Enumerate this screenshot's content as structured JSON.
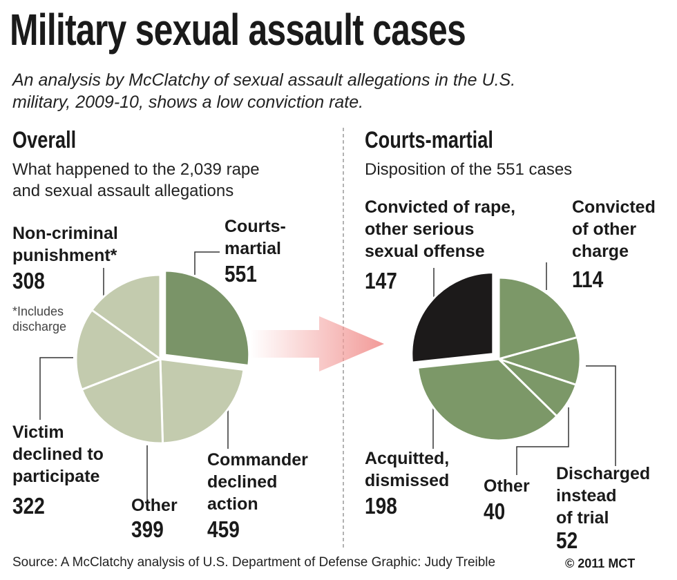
{
  "title": "Military sexual assault cases",
  "subtitle_lines": [
    "An analysis by McClatchy of sexual assault allegations in the U.S.",
    "military, 2009-10, shows a low conviction rate."
  ],
  "source": "Source: A McClatchy analysis of U.S. Department of Defense   Graphic: Judy Treible",
  "copyright": "© 2011 MCT",
  "colors": {
    "light_green": "#c3cbae",
    "dark_green": "#7a9468",
    "mid_green": "#7c9868",
    "black": "#1c1a1a",
    "arrow": "#f29a98"
  },
  "chart_data": [
    {
      "type": "pie",
      "title": "Overall",
      "subtitle_lines": [
        "What happened to the 2,039 rape",
        "and sexual assault allegations"
      ],
      "slices": [
        {
          "label_lines": [
            "Courts-",
            "martial"
          ],
          "value": 551,
          "color": "#7a9468",
          "exploded": true
        },
        {
          "label_lines": [
            "Commander",
            "declined",
            "action"
          ],
          "value": 459,
          "color": "#c3cbae"
        },
        {
          "label_lines": [
            "Other"
          ],
          "value": 399,
          "color": "#c3cbae"
        },
        {
          "label_lines": [
            "Victim",
            "declined to",
            "participate"
          ],
          "value": 322,
          "color": "#c3cbae"
        },
        {
          "label_lines": [
            "Non-criminal",
            "punishment*"
          ],
          "value": 308,
          "color": "#c3cbae"
        }
      ],
      "footnote_lines": [
        "*Includes",
        "discharge"
      ]
    },
    {
      "type": "pie",
      "title": "Courts-martial",
      "subtitle_lines": [
        "Disposition of the 551 cases"
      ],
      "slices": [
        {
          "label_lines": [
            "Convicted",
            "of other",
            "charge"
          ],
          "value": 114,
          "color": "#7c9868"
        },
        {
          "label_lines": [
            "Discharged",
            "instead",
            "of trial"
          ],
          "value": 52,
          "color": "#7c9868"
        },
        {
          "label_lines": [
            "Other"
          ],
          "value": 40,
          "color": "#7c9868"
        },
        {
          "label_lines": [
            "Acquitted,",
            "dismissed"
          ],
          "value": 198,
          "color": "#7c9868"
        },
        {
          "label_lines": [
            "Convicted of rape,",
            "other serious",
            "sexual offense"
          ],
          "value": 147,
          "color": "#1c1a1a",
          "exploded": true
        }
      ]
    }
  ]
}
